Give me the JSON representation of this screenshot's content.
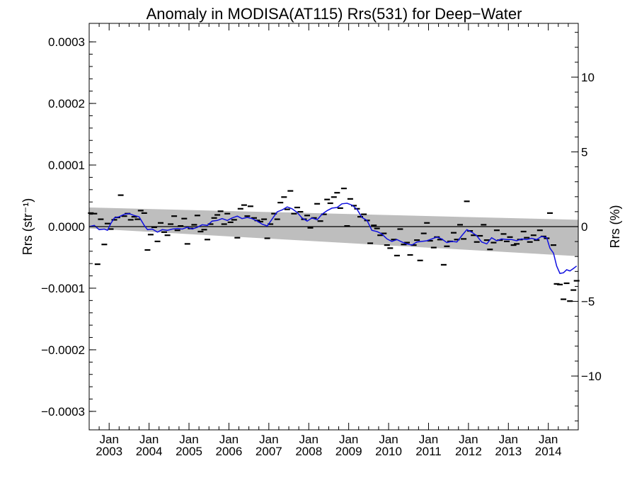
{
  "chart_data": {
    "type": "line",
    "title": "Anomaly in MODISA(AT115) Rrs(531) for Deep−Water",
    "ylabel_left": "Rrs (str⁻¹)",
    "ylabel_right": "Rrs (%)",
    "xlabel": "",
    "xlim": [
      2002.5,
      2014.75
    ],
    "ylim": [
      -0.00033,
      0.00033
    ],
    "ylim_right": [
      -13.6,
      13.6
    ],
    "left_ticks": [
      {
        "value": 0.0003,
        "label": "0.0003"
      },
      {
        "value": 0.0002,
        "label": "0.0002"
      },
      {
        "value": 0.0001,
        "label": "0.0001"
      },
      {
        "value": 0.0,
        "label": "0.0000"
      },
      {
        "value": -0.0001,
        "label": "−0.0001"
      },
      {
        "value": -0.0002,
        "label": "−0.0002"
      },
      {
        "value": -0.0003,
        "label": "−0.0003"
      }
    ],
    "right_ticks": [
      {
        "value": 10,
        "label": "10"
      },
      {
        "value": 5,
        "label": "5"
      },
      {
        "value": 0,
        "label": "0"
      },
      {
        "value": -5,
        "label": "−5"
      },
      {
        "value": -10,
        "label": "−10"
      }
    ],
    "x_ticks": [
      {
        "value": 2003,
        "month": "Jan",
        "year": "2003"
      },
      {
        "value": 2004,
        "month": "Jan",
        "year": "2004"
      },
      {
        "value": 2005,
        "month": "Jan",
        "year": "2005"
      },
      {
        "value": 2006,
        "month": "Jan",
        "year": "2006"
      },
      {
        "value": 2007,
        "month": "Jan",
        "year": "2007"
      },
      {
        "value": 2008,
        "month": "Jan",
        "year": "2008"
      },
      {
        "value": 2009,
        "month": "Jan",
        "year": "2009"
      },
      {
        "value": 2010,
        "month": "Jan",
        "year": "2010"
      },
      {
        "value": 2011,
        "month": "Jan",
        "year": "2011"
      },
      {
        "value": 2012,
        "month": "Jan",
        "year": "2012"
      },
      {
        "value": 2013,
        "month": "Jan",
        "year": "2013"
      },
      {
        "value": 2014,
        "month": "Jan",
        "year": "2014"
      }
    ],
    "uncertainty_band": {
      "color": "#bebebe",
      "upper": [
        [
          2002.5,
          3.1e-05
        ],
        [
          2014.75,
          1.1e-05
        ]
      ],
      "lower": [
        [
          2002.5,
          -3e-06
        ],
        [
          2014.75,
          -4.8e-05
        ]
      ]
    },
    "zero_line": true,
    "series": [
      {
        "kind": "monthly_points",
        "color": "#000000",
        "points": [
          [
            2002.54,
            2.2e-05
          ],
          [
            2002.63,
            2.1e-05
          ],
          [
            2002.71,
            -6.1e-05
          ],
          [
            2002.79,
            1.2e-05
          ],
          [
            2002.88,
            -2.9e-05
          ],
          [
            2002.96,
            5e-06
          ],
          [
            2003.04,
            -4e-06
          ],
          [
            2003.13,
            1.1e-05
          ],
          [
            2003.21,
            1.5e-05
          ],
          [
            2003.29,
            5.1e-05
          ],
          [
            2003.38,
            1.7e-05
          ],
          [
            2003.46,
            2.1e-05
          ],
          [
            2003.54,
            1.1e-05
          ],
          [
            2003.63,
            1.6e-05
          ],
          [
            2003.71,
            1.2e-05
          ],
          [
            2003.79,
            2.6e-05
          ],
          [
            2003.88,
            2.2e-05
          ],
          [
            2003.96,
            -3.8e-05
          ],
          [
            2004.04,
            -1.3e-05
          ],
          [
            2004.13,
            -1e-06
          ],
          [
            2004.21,
            -2.4e-05
          ],
          [
            2004.29,
            6e-06
          ],
          [
            2004.38,
            -9e-06
          ],
          [
            2004.46,
            -1.4e-05
          ],
          [
            2004.54,
            4e-06
          ],
          [
            2004.63,
            1.7e-05
          ],
          [
            2004.71,
            -6e-06
          ],
          [
            2004.79,
            1e-06
          ],
          [
            2004.88,
            1.3e-05
          ],
          [
            2004.96,
            -2.8e-05
          ],
          [
            2005.04,
            -3e-06
          ],
          [
            2005.13,
            3e-06
          ],
          [
            2005.21,
            1.8e-05
          ],
          [
            2005.29,
            -8e-06
          ],
          [
            2005.38,
            -5e-06
          ],
          [
            2005.46,
            -2.1e-05
          ],
          [
            2005.54,
            4e-06
          ],
          [
            2005.63,
            1.4e-05
          ],
          [
            2005.71,
            1.9e-05
          ],
          [
            2005.79,
            2.5e-05
          ],
          [
            2005.88,
            4e-06
          ],
          [
            2005.96,
            2.1e-05
          ],
          [
            2006.04,
            7e-06
          ],
          [
            2006.13,
            1.1e-05
          ],
          [
            2006.21,
            -1.8e-05
          ],
          [
            2006.29,
            2.9e-05
          ],
          [
            2006.38,
            3.5e-05
          ],
          [
            2006.46,
            1.7e-05
          ],
          [
            2006.54,
            3.3e-05
          ],
          [
            2006.63,
            1.4e-05
          ],
          [
            2006.71,
            1e-05
          ],
          [
            2006.79,
            8e-06
          ],
          [
            2006.88,
            1.2e-05
          ],
          [
            2006.96,
            -1.9e-05
          ],
          [
            2007.04,
            4e-06
          ],
          [
            2007.13,
            2.1e-05
          ],
          [
            2007.21,
            1.2e-05
          ],
          [
            2007.29,
            3.9e-05
          ],
          [
            2007.38,
            4.8e-05
          ],
          [
            2007.46,
            2.8e-05
          ],
          [
            2007.54,
            5.8e-05
          ],
          [
            2007.63,
            2.1e-05
          ],
          [
            2007.71,
            3.1e-05
          ],
          [
            2007.79,
            2.4e-05
          ],
          [
            2007.88,
            1.2e-05
          ],
          [
            2007.96,
            1.8e-05
          ],
          [
            2008.04,
            -2e-06
          ],
          [
            2008.13,
            1.4e-05
          ],
          [
            2008.21,
            3.7e-05
          ],
          [
            2008.29,
            9e-06
          ],
          [
            2008.38,
            2e-05
          ],
          [
            2008.46,
            4.4e-05
          ],
          [
            2008.54,
            3.8e-05
          ],
          [
            2008.63,
            4.8e-05
          ],
          [
            2008.71,
            5.5e-05
          ],
          [
            2008.79,
            3e-05
          ],
          [
            2008.88,
            6.2e-05
          ],
          [
            2008.96,
            1e-06
          ],
          [
            2009.04,
            4.5e-05
          ],
          [
            2009.13,
            3.4e-05
          ],
          [
            2009.21,
            2.9e-05
          ],
          [
            2009.29,
            1.6e-05
          ],
          [
            2009.38,
            2e-05
          ],
          [
            2009.46,
            1e-05
          ],
          [
            2009.54,
            -2.7e-05
          ],
          [
            2009.63,
            2e-06
          ],
          [
            2009.71,
            -3e-06
          ],
          [
            2009.79,
            -1.4e-05
          ],
          [
            2009.88,
            -1.1e-05
          ],
          [
            2009.96,
            -3e-05
          ],
          [
            2010.04,
            -3.5e-05
          ],
          [
            2010.13,
            -2.1e-05
          ],
          [
            2010.21,
            -4.7e-05
          ],
          [
            2010.29,
            -4e-06
          ],
          [
            2010.38,
            -2.9e-05
          ],
          [
            2010.46,
            -2.6e-05
          ],
          [
            2010.54,
            -4.6e-05
          ],
          [
            2010.63,
            -3e-05
          ],
          [
            2010.71,
            -2.2e-05
          ],
          [
            2010.79,
            -5.5e-05
          ],
          [
            2010.88,
            -1.1e-05
          ],
          [
            2010.96,
            6e-06
          ],
          [
            2011.04,
            -2.3e-05
          ],
          [
            2011.13,
            -3.4e-05
          ],
          [
            2011.21,
            -1.7e-05
          ],
          [
            2011.29,
            -2.1e-05
          ],
          [
            2011.38,
            -6.2e-05
          ],
          [
            2011.46,
            -3.2e-05
          ],
          [
            2011.54,
            -2.4e-05
          ],
          [
            2011.63,
            -1e-05
          ],
          [
            2011.71,
            -2.1e-05
          ],
          [
            2011.79,
            3e-06
          ],
          [
            2011.88,
            -2e-05
          ],
          [
            2011.96,
            4.1e-05
          ],
          [
            2012.04,
            -7e-06
          ],
          [
            2012.13,
            -1.4e-05
          ],
          [
            2012.21,
            -2.5e-05
          ],
          [
            2012.29,
            -1.5e-05
          ],
          [
            2012.38,
            3e-06
          ],
          [
            2012.46,
            -2.2e-05
          ],
          [
            2012.54,
            -3.7e-05
          ],
          [
            2012.63,
            -2.6e-05
          ],
          [
            2012.71,
            -6e-06
          ],
          [
            2012.79,
            -2.2e-05
          ],
          [
            2012.88,
            -1.2e-05
          ],
          [
            2012.96,
            -2.4e-05
          ],
          [
            2013.04,
            -1.7e-05
          ],
          [
            2013.13,
            -3e-05
          ],
          [
            2013.21,
            -2.8e-05
          ],
          [
            2013.29,
            -2.1e-05
          ],
          [
            2013.38,
            -8e-06
          ],
          [
            2013.46,
            -1.8e-05
          ],
          [
            2013.54,
            -2.5e-05
          ],
          [
            2013.63,
            -1.4e-05
          ],
          [
            2013.71,
            -2.2e-05
          ],
          [
            2013.79,
            -6e-06
          ],
          [
            2013.88,
            -1.6e-05
          ],
          [
            2013.96,
            -1.9e-05
          ],
          [
            2014.04,
            2.2e-05
          ],
          [
            2014.13,
            -3e-05
          ],
          [
            2014.21,
            -9.3e-05
          ],
          [
            2014.29,
            -9.4e-05
          ],
          [
            2014.38,
            -0.000118
          ],
          [
            2014.46,
            -9.2e-05
          ],
          [
            2014.54,
            -0.000121
          ],
          [
            2014.63,
            -0.000103
          ],
          [
            2014.71,
            -8.8e-05
          ]
        ]
      },
      {
        "kind": "running_mean",
        "color": "#1010e0",
        "points": [
          [
            2002.5,
            0.0
          ],
          [
            2002.63,
            2e-06
          ],
          [
            2002.75,
            -5e-06
          ],
          [
            2002.88,
            -4e-06
          ],
          [
            2002.96,
            -6e-06
          ],
          [
            2003.04,
            5e-06
          ],
          [
            2003.13,
            1.4e-05
          ],
          [
            2003.25,
            1.6e-05
          ],
          [
            2003.38,
            2e-05
          ],
          [
            2003.5,
            2.1e-05
          ],
          [
            2003.63,
            1.8e-05
          ],
          [
            2003.75,
            1.6e-05
          ],
          [
            2003.88,
            2e-06
          ],
          [
            2003.96,
            -5e-06
          ],
          [
            2004.08,
            -4e-06
          ],
          [
            2004.21,
            -9e-06
          ],
          [
            2004.33,
            -5e-06
          ],
          [
            2004.46,
            -6e-06
          ],
          [
            2004.58,
            -4e-06
          ],
          [
            2004.71,
            -3e-06
          ],
          [
            2004.83,
            -4e-06
          ],
          [
            2004.96,
            -1e-06
          ],
          [
            2005.08,
            -4e-06
          ],
          [
            2005.21,
            -1e-06
          ],
          [
            2005.33,
            3e-06
          ],
          [
            2005.46,
            2e-06
          ],
          [
            2005.58,
            9e-06
          ],
          [
            2005.71,
            1e-05
          ],
          [
            2005.83,
            1.3e-05
          ],
          [
            2005.96,
            1e-05
          ],
          [
            2006.08,
            1.4e-05
          ],
          [
            2006.21,
            1.7e-05
          ],
          [
            2006.33,
            1.3e-05
          ],
          [
            2006.46,
            1.5e-05
          ],
          [
            2006.58,
            1.3e-05
          ],
          [
            2006.71,
            9e-06
          ],
          [
            2006.83,
            4e-06
          ],
          [
            2006.96,
            1e-06
          ],
          [
            2007.08,
            1.2e-05
          ],
          [
            2007.21,
            2.4e-05
          ],
          [
            2007.33,
            2.7e-05
          ],
          [
            2007.46,
            3.2e-05
          ],
          [
            2007.58,
            2.9e-05
          ],
          [
            2007.71,
            2.3e-05
          ],
          [
            2007.83,
            1.4e-05
          ],
          [
            2007.96,
            9e-06
          ],
          [
            2008.08,
            1.4e-05
          ],
          [
            2008.21,
            1.1e-05
          ],
          [
            2008.33,
            2e-05
          ],
          [
            2008.46,
            2.6e-05
          ],
          [
            2008.58,
            3e-05
          ],
          [
            2008.71,
            3.1e-05
          ],
          [
            2008.83,
            3.7e-05
          ],
          [
            2008.96,
            3.8e-05
          ],
          [
            2009.08,
            3.5e-05
          ],
          [
            2009.21,
            2.8e-05
          ],
          [
            2009.33,
            1.5e-05
          ],
          [
            2009.46,
            1e-05
          ],
          [
            2009.58,
            -6e-06
          ],
          [
            2009.71,
            -8e-06
          ],
          [
            2009.83,
            -1.2e-05
          ],
          [
            2009.96,
            -2e-05
          ],
          [
            2010.08,
            -2.4e-05
          ],
          [
            2010.21,
            -2.1e-05
          ],
          [
            2010.33,
            -2.5e-05
          ],
          [
            2010.46,
            -2.8e-05
          ],
          [
            2010.58,
            -3e-05
          ],
          [
            2010.71,
            -2.5e-05
          ],
          [
            2010.83,
            -2.4e-05
          ],
          [
            2010.96,
            -2.3e-05
          ],
          [
            2011.08,
            -2e-05
          ],
          [
            2011.21,
            -1.7e-05
          ],
          [
            2011.33,
            -2e-05
          ],
          [
            2011.46,
            -2.6e-05
          ],
          [
            2011.58,
            -2.4e-05
          ],
          [
            2011.71,
            -2.5e-05
          ],
          [
            2011.83,
            -1.5e-05
          ],
          [
            2011.96,
            -5e-06
          ],
          [
            2012.08,
            -9e-06
          ],
          [
            2012.21,
            -1.5e-05
          ],
          [
            2012.33,
            -2.5e-05
          ],
          [
            2012.46,
            -2.8e-05
          ],
          [
            2012.58,
            -1.8e-05
          ],
          [
            2012.71,
            -2.3e-05
          ],
          [
            2012.83,
            -2e-05
          ],
          [
            2012.96,
            -2.1e-05
          ],
          [
            2013.08,
            -2.1e-05
          ],
          [
            2013.21,
            -2.3e-05
          ],
          [
            2013.33,
            -2e-05
          ],
          [
            2013.46,
            -2.1e-05
          ],
          [
            2013.58,
            -1.9e-05
          ],
          [
            2013.71,
            -2.1e-05
          ],
          [
            2013.83,
            -1.6e-05
          ],
          [
            2013.96,
            -1.8e-05
          ],
          [
            2014.04,
            -3.5e-05
          ],
          [
            2014.13,
            -4.3e-05
          ],
          [
            2014.21,
            -6.4e-05
          ],
          [
            2014.29,
            -7.6e-05
          ],
          [
            2014.38,
            -7.5e-05
          ],
          [
            2014.46,
            -7e-05
          ],
          [
            2014.54,
            -7.2e-05
          ],
          [
            2014.63,
            -6.8e-05
          ],
          [
            2014.71,
            -6.4e-05
          ]
        ]
      }
    ],
    "grid": false
  }
}
